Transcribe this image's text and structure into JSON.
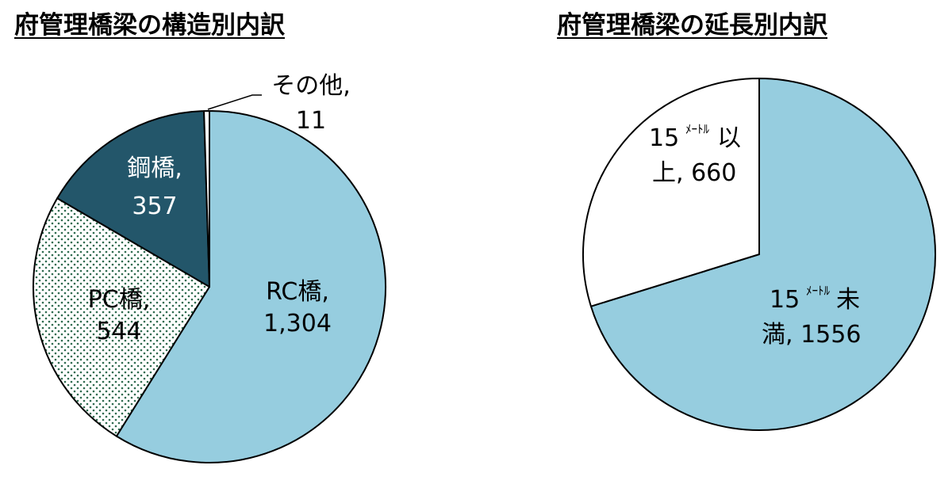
{
  "chart_data": [
    {
      "type": "pie",
      "title": "府管理橋梁の構造別内訳",
      "slices": [
        {
          "label": "RC橋",
          "value": 1304,
          "value_text": "1,304",
          "color": "#96cddf",
          "fill": "solid"
        },
        {
          "label": "PC橋",
          "value": 544,
          "value_text": "544",
          "color": "#ffffff",
          "fill": "dots"
        },
        {
          "label": "鋼橋",
          "value": 357,
          "value_text": "357",
          "color": "#23566a",
          "fill": "solid"
        },
        {
          "label": "その他",
          "value": 11,
          "value_text": "11",
          "color": "#ffffff",
          "fill": "solid"
        }
      ]
    },
    {
      "type": "pie",
      "title": "府管理橋梁の延長別内訳",
      "slices": [
        {
          "label_parts": [
            "15",
            "ﾒｰﾄﾙ",
            "未",
            "満"
          ],
          "value": 1556,
          "value_text": "1556",
          "color": "#96cddf",
          "fill": "solid"
        },
        {
          "label_parts": [
            "15",
            "ﾒｰﾄﾙ",
            "以",
            "上"
          ],
          "value": 660,
          "value_text": "660",
          "color": "#ffffff",
          "fill": "solid"
        }
      ]
    }
  ]
}
